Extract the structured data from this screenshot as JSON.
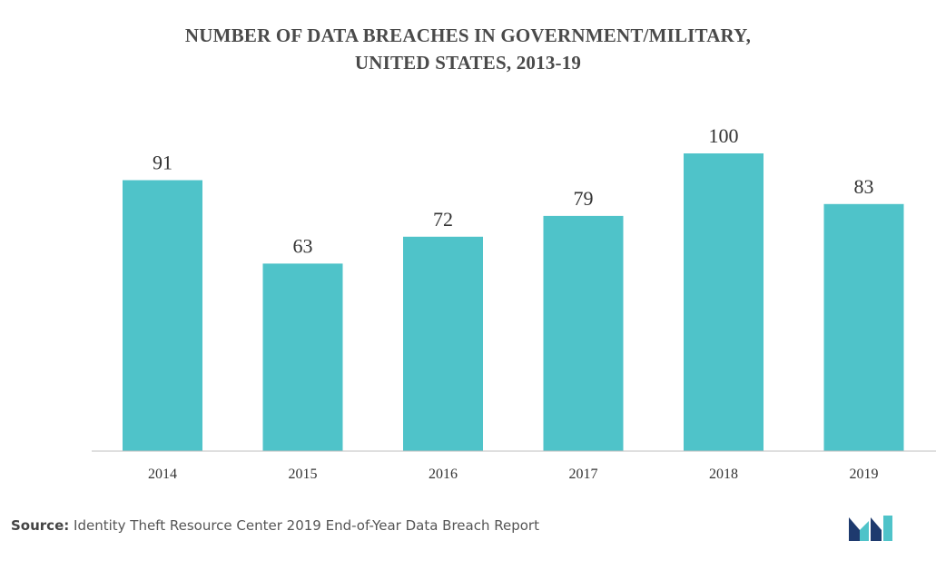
{
  "title_line1": "NUMBER OF DATA BREACHES IN GOVERNMENT/MILITARY,",
  "title_line2": "UNITED STATES, 2013-19",
  "source_label": "Source",
  "source_sep": ":",
  "source_text": "Identity Theft Resource Center 2019 End-of-Year Data Breach Report",
  "logo_icon": "mordor-intelligence-logo-icon",
  "colors": {
    "bar": "#4FC3C9",
    "axis": "#bfbfbf",
    "logo_dark": "#1e3a6e",
    "logo_light": "#4FC3C9"
  },
  "chart_data": {
    "type": "bar",
    "categories": [
      "2014",
      "2015",
      "2016",
      "2017",
      "2018",
      "2019"
    ],
    "values": [
      91,
      63,
      72,
      79,
      100,
      83
    ],
    "title": "NUMBER OF DATA BREACHES IN GOVERNMENT/MILITARY, UNITED STATES, 2013-19",
    "xlabel": "",
    "ylabel": "",
    "ylim": [
      0,
      100
    ],
    "grid": false,
    "legend": "none",
    "data_labels": true
  }
}
